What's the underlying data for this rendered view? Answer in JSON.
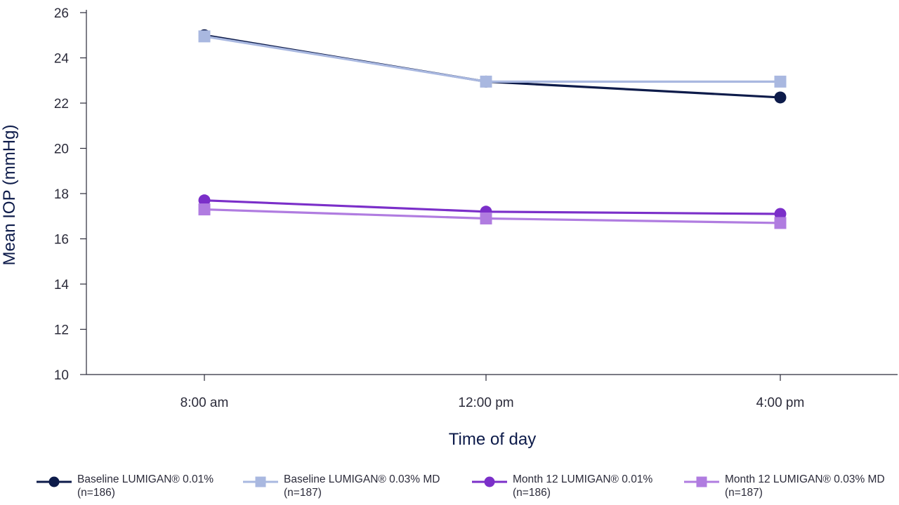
{
  "chart_data": {
    "type": "line",
    "xlabel": "Time of day",
    "ylabel": "Mean IOP (mmHg)",
    "categories": [
      "8:00 am",
      "12:00 pm",
      "4:00 pm"
    ],
    "ylim": [
      10,
      26
    ],
    "yticks": [
      "10",
      "12",
      "14",
      "16",
      "18",
      "20",
      "22",
      "24",
      "26"
    ],
    "grid": false,
    "legend_position": "bottom",
    "series": [
      {
        "name": "Baseline LUMIGAN® 0.01%",
        "n_label": "(n=186)",
        "marker": "circle",
        "color": "#0d1b4a",
        "values": [
          25.0,
          22.95,
          22.25
        ]
      },
      {
        "name": "Baseline LUMIGAN® 0.03% MD",
        "n_label": "(n=187)",
        "marker": "square",
        "color": "#a9b8e0",
        "values": [
          24.95,
          22.95,
          22.95
        ]
      },
      {
        "name": "Month 12 LUMIGAN® 0.01%",
        "n_label": "(n=186)",
        "marker": "circle",
        "color": "#7b2fc9",
        "values": [
          17.7,
          17.2,
          17.1
        ]
      },
      {
        "name": "Month 12 LUMIGAN® 0.03% MD",
        "n_label": "(n=187)",
        "marker": "square",
        "color": "#b07ce0",
        "values": [
          17.3,
          16.9,
          16.7
        ]
      }
    ]
  }
}
